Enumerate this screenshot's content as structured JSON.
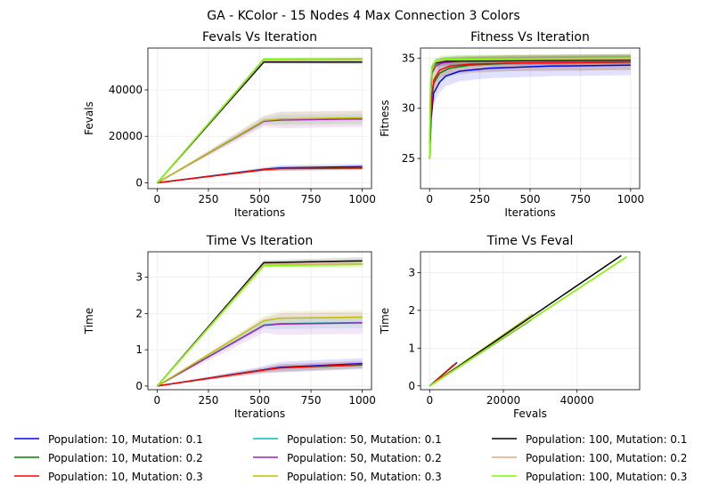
{
  "figure_title": "GA - KColor - 15 Nodes 4 Max Connection 3 Colors",
  "legend": [
    {
      "label": "Population: 10, Mutation: 0.1",
      "color": "#0000ff"
    },
    {
      "label": "Population: 10, Mutation: 0.2",
      "color": "#008000"
    },
    {
      "label": "Population: 10, Mutation: 0.3",
      "color": "#ff0000"
    },
    {
      "label": "Population: 50, Mutation: 0.1",
      "color": "#00bfbf"
    },
    {
      "label": "Population: 50, Mutation: 0.2",
      "color": "#a020c0"
    },
    {
      "label": "Population: 50, Mutation: 0.3",
      "color": "#bfbf00"
    },
    {
      "label": "Population: 100, Mutation: 0.1",
      "color": "#000000"
    },
    {
      "label": "Population: 100, Mutation: 0.2",
      "color": "#e0a880"
    },
    {
      "label": "Population: 100, Mutation: 0.3",
      "color": "#7cfc00"
    }
  ],
  "chart_data": [
    {
      "type": "line",
      "title": "Fevals Vs Iteration",
      "xlabel": "Iterations",
      "ylabel": "Fevals",
      "xlim": [
        -45,
        1045
      ],
      "ylim": [
        -2500,
        58000
      ],
      "xticks": [
        0,
        250,
        500,
        750,
        1000
      ],
      "yticks": [
        0,
        20000,
        40000
      ],
      "grid": true,
      "series": [
        {
          "name": "Population: 10, Mutation: 0.1",
          "color": "#0000ff",
          "band": 1200,
          "x": [
            0,
            520,
            600,
            1000
          ],
          "y": [
            0,
            5800,
            6400,
            7000
          ]
        },
        {
          "name": "Population: 10, Mutation: 0.2",
          "color": "#008000",
          "band": 900,
          "x": [
            0,
            520,
            600,
            1000
          ],
          "y": [
            0,
            5700,
            6200,
            6500
          ]
        },
        {
          "name": "Population: 10, Mutation: 0.3",
          "color": "#ff0000",
          "band": 900,
          "x": [
            0,
            520,
            600,
            1000
          ],
          "y": [
            0,
            5600,
            6100,
            6300
          ]
        },
        {
          "name": "Population: 50, Mutation: 0.1",
          "color": "#00bfbf",
          "band": 2000,
          "x": [
            0,
            520,
            600,
            1000
          ],
          "y": [
            0,
            26500,
            27200,
            27600
          ]
        },
        {
          "name": "Population: 50, Mutation: 0.2",
          "color": "#a020c0",
          "band": 3500,
          "x": [
            0,
            520,
            600,
            1000
          ],
          "y": [
            0,
            26500,
            27000,
            27500
          ]
        },
        {
          "name": "Population: 50, Mutation: 0.3",
          "color": "#bfbf00",
          "band": 3000,
          "x": [
            0,
            520,
            600,
            1000
          ],
          "y": [
            0,
            26800,
            27500,
            28000
          ]
        },
        {
          "name": "Population: 100, Mutation: 0.1",
          "color": "#000000",
          "band": 1000,
          "x": [
            0,
            520,
            1000
          ],
          "y": [
            0,
            52000,
            52000
          ]
        },
        {
          "name": "Population: 100, Mutation: 0.2",
          "color": "#e0a880",
          "band": 1000,
          "x": [
            0,
            520,
            1000
          ],
          "y": [
            0,
            52800,
            53000
          ]
        },
        {
          "name": "Population: 100, Mutation: 0.3",
          "color": "#7cfc00",
          "band": 1000,
          "x": [
            0,
            520,
            1000
          ],
          "y": [
            0,
            53300,
            53500
          ]
        }
      ]
    },
    {
      "type": "line",
      "title": "Fitness Vs Iteration",
      "xlabel": "Iterations",
      "ylabel": "Fitness",
      "xlim": [
        -45,
        1045
      ],
      "ylim": [
        22,
        36
      ],
      "xticks": [
        0,
        250,
        500,
        750,
        1000
      ],
      "yticks": [
        25,
        30,
        35
      ],
      "grid": true,
      "series": [
        {
          "name": "Population: 10, Mutation: 0.1",
          "color": "#0000ff",
          "band": 1.0,
          "x": [
            0,
            8,
            20,
            50,
            80,
            150,
            300,
            600,
            1000
          ],
          "y": [
            25,
            29,
            31.5,
            32.6,
            33.2,
            33.7,
            34.0,
            34.2,
            34.3
          ]
        },
        {
          "name": "Population: 10, Mutation: 0.2",
          "color": "#008000",
          "band": 0.8,
          "x": [
            0,
            8,
            20,
            50,
            100,
            200,
            400,
            1000
          ],
          "y": [
            25,
            30,
            32.5,
            33.5,
            34.0,
            34.3,
            34.5,
            34.6
          ]
        },
        {
          "name": "Population: 10, Mutation: 0.3",
          "color": "#ff0000",
          "band": 0.8,
          "x": [
            0,
            8,
            20,
            50,
            100,
            200,
            400,
            1000
          ],
          "y": [
            25,
            30.5,
            32.8,
            33.8,
            34.2,
            34.4,
            34.5,
            34.6
          ]
        },
        {
          "name": "Population: 50, Mutation: 0.1",
          "color": "#00bfbf",
          "band": 0.5,
          "x": [
            0,
            5,
            12,
            30,
            60,
            150,
            1000
          ],
          "y": [
            25,
            31,
            33.5,
            34.3,
            34.6,
            34.8,
            34.9
          ]
        },
        {
          "name": "Population: 50, Mutation: 0.2",
          "color": "#a020c0",
          "band": 0.5,
          "x": [
            0,
            5,
            12,
            30,
            60,
            150,
            1000
          ],
          "y": [
            25,
            31,
            33.5,
            34.2,
            34.5,
            34.7,
            34.8
          ]
        },
        {
          "name": "Population: 50, Mutation: 0.3",
          "color": "#bfbf00",
          "band": 0.5,
          "x": [
            0,
            5,
            12,
            30,
            60,
            150,
            1000
          ],
          "y": [
            25,
            31.5,
            33.8,
            34.4,
            34.7,
            34.8,
            34.9
          ]
        },
        {
          "name": "Population: 100, Mutation: 0.1",
          "color": "#000000",
          "band": 0.4,
          "x": [
            0,
            5,
            12,
            30,
            80,
            1000
          ],
          "y": [
            25,
            32,
            34,
            34.5,
            34.7,
            34.8
          ]
        },
        {
          "name": "Population: 100, Mutation: 0.2",
          "color": "#e0a880",
          "band": 0.4,
          "x": [
            0,
            5,
            12,
            30,
            80,
            1000
          ],
          "y": [
            25,
            32,
            34,
            34.6,
            34.8,
            34.9
          ]
        },
        {
          "name": "Population: 100, Mutation: 0.3",
          "color": "#7cfc00",
          "band": 0.4,
          "x": [
            0,
            5,
            12,
            30,
            80,
            1000
          ],
          "y": [
            25,
            32.5,
            34.2,
            34.7,
            34.9,
            35.0
          ]
        }
      ]
    },
    {
      "type": "line",
      "title": "Time Vs Iteration",
      "xlabel": "Iterations",
      "ylabel": "Time",
      "xlim": [
        -45,
        1045
      ],
      "ylim": [
        -0.1,
        3.7
      ],
      "xticks": [
        0,
        250,
        500,
        750,
        1000
      ],
      "yticks": [
        0,
        1,
        2,
        3
      ],
      "grid": true,
      "series": [
        {
          "name": "Population: 10, Mutation: 0.1",
          "color": "#0000ff",
          "band": 0.15,
          "x": [
            0,
            520,
            600,
            1000
          ],
          "y": [
            0,
            0.45,
            0.52,
            0.62
          ]
        },
        {
          "name": "Population: 10, Mutation: 0.2",
          "color": "#008000",
          "band": 0.1,
          "x": [
            0,
            520,
            600,
            1000
          ],
          "y": [
            0,
            0.44,
            0.5,
            0.58
          ]
        },
        {
          "name": "Population: 10, Mutation: 0.3",
          "color": "#ff0000",
          "band": 0.1,
          "x": [
            0,
            520,
            600,
            1000
          ],
          "y": [
            0,
            0.44,
            0.5,
            0.6
          ]
        },
        {
          "name": "Population: 50, Mutation: 0.1",
          "color": "#00bfbf",
          "band": 0.15,
          "x": [
            0,
            520,
            600,
            1000
          ],
          "y": [
            0,
            1.68,
            1.72,
            1.75
          ]
        },
        {
          "name": "Population: 50, Mutation: 0.2",
          "color": "#a020c0",
          "band": 0.3,
          "x": [
            0,
            520,
            600,
            1000
          ],
          "y": [
            0,
            1.67,
            1.71,
            1.74
          ]
        },
        {
          "name": "Population: 50, Mutation: 0.3",
          "color": "#bfbf00",
          "band": 0.2,
          "x": [
            0,
            520,
            600,
            1000
          ],
          "y": [
            0,
            1.8,
            1.87,
            1.9
          ]
        },
        {
          "name": "Population: 100, Mutation: 0.1",
          "color": "#000000",
          "band": 0.1,
          "x": [
            0,
            520,
            1000
          ],
          "y": [
            0,
            3.4,
            3.45
          ]
        },
        {
          "name": "Population: 100, Mutation: 0.2",
          "color": "#e0a880",
          "band": 0.1,
          "x": [
            0,
            520,
            1000
          ],
          "y": [
            0,
            3.35,
            3.38
          ]
        },
        {
          "name": "Population: 100, Mutation: 0.3",
          "color": "#7cfc00",
          "band": 0.1,
          "x": [
            0,
            520,
            1000
          ],
          "y": [
            0,
            3.32,
            3.35
          ]
        }
      ]
    },
    {
      "type": "line",
      "title": "Time Vs Feval",
      "xlabel": "Fevals",
      "ylabel": "Time",
      "xlim": [
        -2500,
        57000
      ],
      "ylim": [
        -0.1,
        3.55
      ],
      "xticks": [
        0,
        20000,
        40000
      ],
      "yticks": [
        0,
        1,
        2,
        3
      ],
      "grid": true,
      "series": [
        {
          "name": "Population: 10, Mutation: 0.1",
          "color": "#0000ff",
          "band": 0,
          "x": [
            0,
            7400
          ],
          "y": [
            0,
            0.62
          ]
        },
        {
          "name": "Population: 10, Mutation: 0.2",
          "color": "#008000",
          "band": 0,
          "x": [
            0,
            6500
          ],
          "y": [
            0,
            0.56
          ]
        },
        {
          "name": "Population: 10, Mutation: 0.3",
          "color": "#ff0000",
          "band": 0,
          "x": [
            0,
            7000
          ],
          "y": [
            0,
            0.58
          ]
        },
        {
          "name": "Population: 50, Mutation: 0.1",
          "color": "#00bfbf",
          "band": 0,
          "x": [
            0,
            27600
          ],
          "y": [
            0,
            1.75
          ]
        },
        {
          "name": "Population: 50, Mutation: 0.2",
          "color": "#a020c0",
          "band": 0,
          "x": [
            0,
            27500
          ],
          "y": [
            0,
            1.74
          ]
        },
        {
          "name": "Population: 50, Mutation: 0.3",
          "color": "#bfbf00",
          "band": 0,
          "x": [
            0,
            28000
          ],
          "y": [
            0,
            1.9
          ]
        },
        {
          "name": "Population: 100, Mutation: 0.1",
          "color": "#000000",
          "band": 0,
          "x": [
            0,
            52000
          ],
          "y": [
            0,
            3.45
          ]
        },
        {
          "name": "Population: 100, Mutation: 0.2",
          "color": "#e0a880",
          "band": 0,
          "x": [
            0,
            53000
          ],
          "y": [
            0,
            3.38
          ]
        },
        {
          "name": "Population: 100, Mutation: 0.3",
          "color": "#7cfc00",
          "band": 0,
          "x": [
            0,
            53500
          ],
          "y": [
            0,
            3.42
          ]
        }
      ]
    }
  ]
}
